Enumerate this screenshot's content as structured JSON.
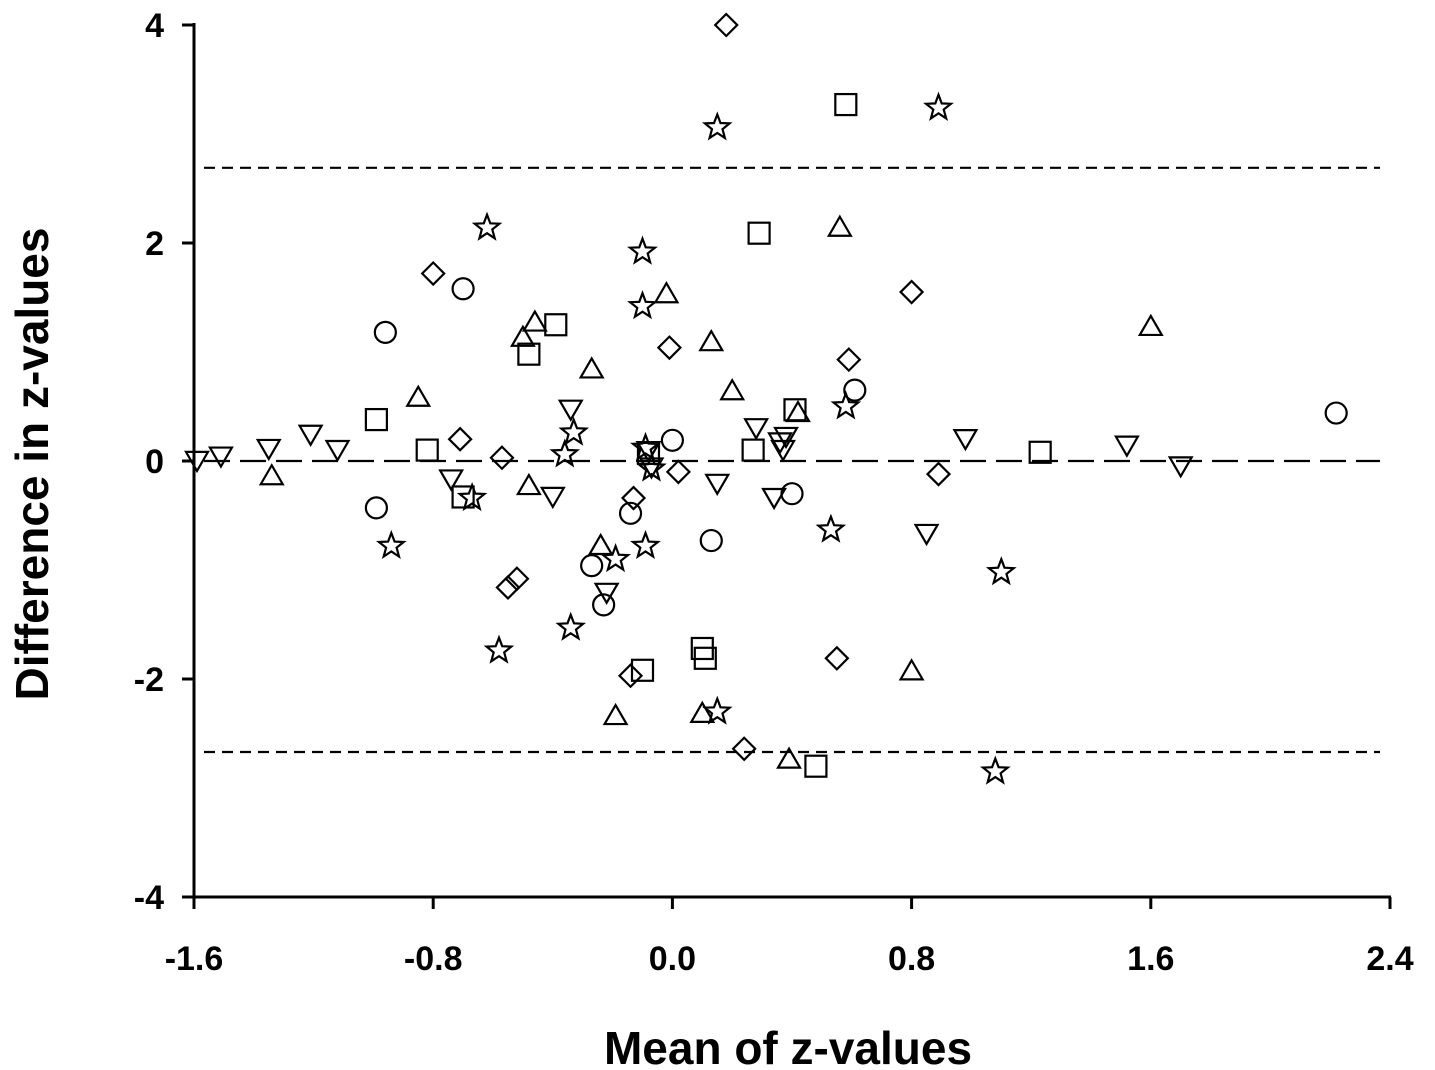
{
  "chart_data": {
    "type": "scatter",
    "title": "",
    "xlabel": "Mean of z-values",
    "ylabel": "Difference in z-values",
    "xlim": [
      -1.6,
      2.4
    ],
    "ylim": [
      -4,
      4
    ],
    "xticks": [
      -1.6,
      -0.8,
      0.0,
      0.8,
      1.6,
      2.4
    ],
    "xtick_labels": [
      "-1.6",
      "-0.8",
      "0.0",
      "0.8",
      "1.6",
      "2.4"
    ],
    "yticks": [
      -4,
      -2,
      0,
      2,
      4
    ],
    "ytick_labels": [
      "-4",
      "-2",
      "0",
      "2",
      "4"
    ],
    "grid": false,
    "legend": "none",
    "reference_lines": [
      {
        "y": 0.0,
        "style": "long-dash"
      },
      {
        "y": 2.69,
        "style": "short-dash"
      },
      {
        "y": -2.67,
        "style": "short-dash"
      }
    ],
    "series": [
      {
        "marker": "circle",
        "points": [
          [
            -0.96,
            1.18
          ],
          [
            -0.7,
            1.58
          ],
          [
            -0.99,
            -0.43
          ],
          [
            -0.27,
            -0.96
          ],
          [
            -0.23,
            -1.32
          ],
          [
            -0.14,
            -0.48
          ],
          [
            0.0,
            0.19
          ],
          [
            0.13,
            -0.73
          ],
          [
            0.4,
            -0.3
          ],
          [
            0.61,
            0.65
          ],
          [
            2.22,
            0.44
          ]
        ]
      },
      {
        "marker": "square",
        "points": [
          [
            -0.99,
            0.38
          ],
          [
            -0.82,
            0.1
          ],
          [
            -0.7,
            -0.33
          ],
          [
            -0.48,
            0.98
          ],
          [
            -0.39,
            1.25
          ],
          [
            -0.08,
            0.07
          ],
          [
            -0.1,
            -1.92
          ],
          [
            0.1,
            -1.72
          ],
          [
            0.11,
            -1.81
          ],
          [
            0.27,
            0.1
          ],
          [
            0.29,
            2.09
          ],
          [
            0.41,
            0.47
          ],
          [
            0.48,
            -2.8
          ],
          [
            0.58,
            3.27
          ],
          [
            1.23,
            0.08
          ]
        ]
      },
      {
        "marker": "diamond",
        "points": [
          [
            -0.8,
            1.72
          ],
          [
            -0.71,
            0.2
          ],
          [
            -0.57,
            0.03
          ],
          [
            -0.55,
            -1.16
          ],
          [
            -0.52,
            -1.08
          ],
          [
            -0.14,
            -1.97
          ],
          [
            -0.13,
            -0.34
          ],
          [
            -0.01,
            1.04
          ],
          [
            0.02,
            -0.1
          ],
          [
            0.18,
            4.0
          ],
          [
            0.24,
            -2.64
          ],
          [
            0.55,
            -1.81
          ],
          [
            0.59,
            0.93
          ],
          [
            0.8,
            1.55
          ],
          [
            0.89,
            -0.12
          ]
        ]
      },
      {
        "marker": "triangle-up",
        "points": [
          [
            -1.34,
            -0.14
          ],
          [
            -0.85,
            0.58
          ],
          [
            -0.5,
            1.13
          ],
          [
            -0.46,
            1.27
          ],
          [
            -0.48,
            -0.23
          ],
          [
            -0.27,
            0.84
          ],
          [
            -0.24,
            -0.78
          ],
          [
            -0.19,
            -2.34
          ],
          [
            -0.02,
            1.53
          ],
          [
            0.13,
            1.09
          ],
          [
            0.1,
            -2.32
          ],
          [
            0.2,
            0.64
          ],
          [
            0.39,
            -2.74
          ],
          [
            0.42,
            0.44
          ],
          [
            0.56,
            2.14
          ],
          [
            0.8,
            -1.93
          ],
          [
            1.6,
            1.23
          ]
        ]
      },
      {
        "marker": "triangle-down",
        "points": [
          [
            -1.59,
            0.01
          ],
          [
            -1.51,
            0.05
          ],
          [
            -1.35,
            0.12
          ],
          [
            -1.21,
            0.25
          ],
          [
            -1.12,
            0.11
          ],
          [
            -0.74,
            -0.16
          ],
          [
            -0.4,
            -0.32
          ],
          [
            -0.34,
            0.48
          ],
          [
            -0.22,
            -1.2
          ],
          [
            -0.08,
            0.1
          ],
          [
            -0.07,
            -0.05
          ],
          [
            0.15,
            -0.2
          ],
          [
            0.28,
            0.31
          ],
          [
            0.34,
            -0.33
          ],
          [
            0.36,
            0.18
          ],
          [
            0.37,
            0.11
          ],
          [
            0.38,
            0.23
          ],
          [
            0.85,
            -0.66
          ],
          [
            0.98,
            0.21
          ],
          [
            1.52,
            0.15
          ],
          [
            1.7,
            -0.04
          ]
        ]
      },
      {
        "marker": "star",
        "points": [
          [
            -0.94,
            -0.78
          ],
          [
            -0.67,
            -0.34
          ],
          [
            -0.62,
            2.14
          ],
          [
            -0.58,
            -1.74
          ],
          [
            -0.33,
            0.26
          ],
          [
            -0.34,
            -1.53
          ],
          [
            -0.36,
            0.06
          ],
          [
            -0.1,
            1.92
          ],
          [
            -0.1,
            1.42
          ],
          [
            -0.19,
            -0.9
          ],
          [
            -0.09,
            -0.78
          ],
          [
            -0.09,
            0.12
          ],
          [
            -0.07,
            -0.07
          ],
          [
            0.15,
            -2.3
          ],
          [
            0.15,
            3.06
          ],
          [
            0.53,
            -0.63
          ],
          [
            0.58,
            0.5
          ],
          [
            0.89,
            3.24
          ],
          [
            1.08,
            -2.85
          ],
          [
            1.1,
            -1.02
          ]
        ]
      }
    ]
  }
}
